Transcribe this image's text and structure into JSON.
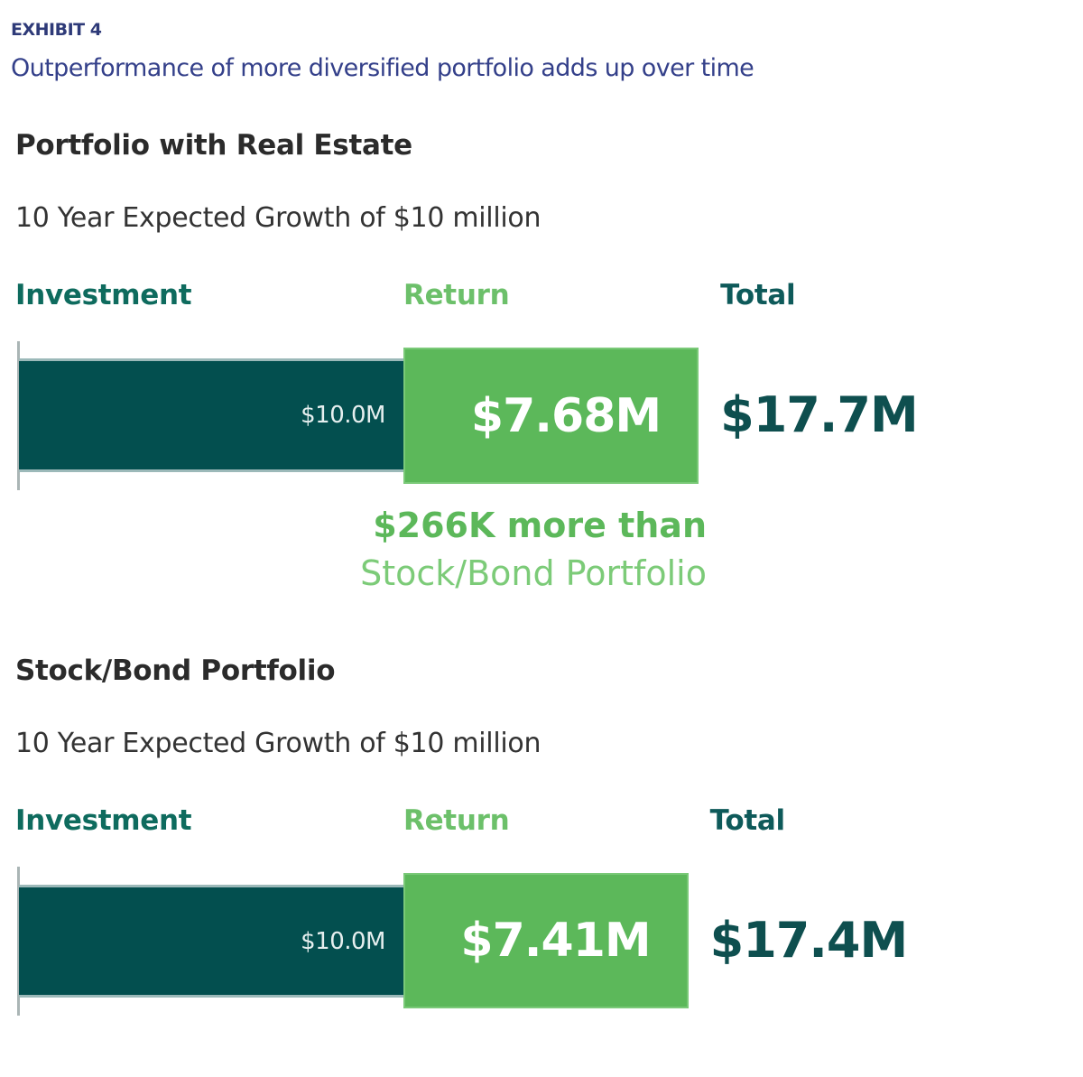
{
  "header": {
    "exhibit": "EXHIBIT 4",
    "subtitle": "Outperformance of more diversified portfolio adds up over time"
  },
  "colors": {
    "investment": "#034f4f",
    "return": "#5cb85a",
    "title": "#2e3a78"
  },
  "chart_data": [
    {
      "type": "bar",
      "stacked": true,
      "orientation": "horizontal",
      "title": "Portfolio with Real Estate",
      "subtitle": "10 Year Expected Growth of $10 million",
      "columns": {
        "investment": "Investment",
        "return": "Return",
        "total": "Total"
      },
      "investment": 10.0,
      "return": 7.68,
      "total": 17.7,
      "unit": "$M",
      "labels": {
        "investment": "$10.0M",
        "return": "$7.68M",
        "total": "$17.7M"
      },
      "annotation": {
        "line1": "$266K more than",
        "line2": "Stock/Bond Portfolio"
      }
    },
    {
      "type": "bar",
      "stacked": true,
      "orientation": "horizontal",
      "title": "Stock/Bond Portfolio",
      "subtitle": "10 Year Expected Growth of $10 million",
      "columns": {
        "investment": "Investment",
        "return": "Return",
        "total": "Total"
      },
      "investment": 10.0,
      "return": 7.41,
      "total": 17.4,
      "unit": "$M",
      "labels": {
        "investment": "$10.0M",
        "return": "$7.41M",
        "total": "$17.4M"
      }
    }
  ]
}
